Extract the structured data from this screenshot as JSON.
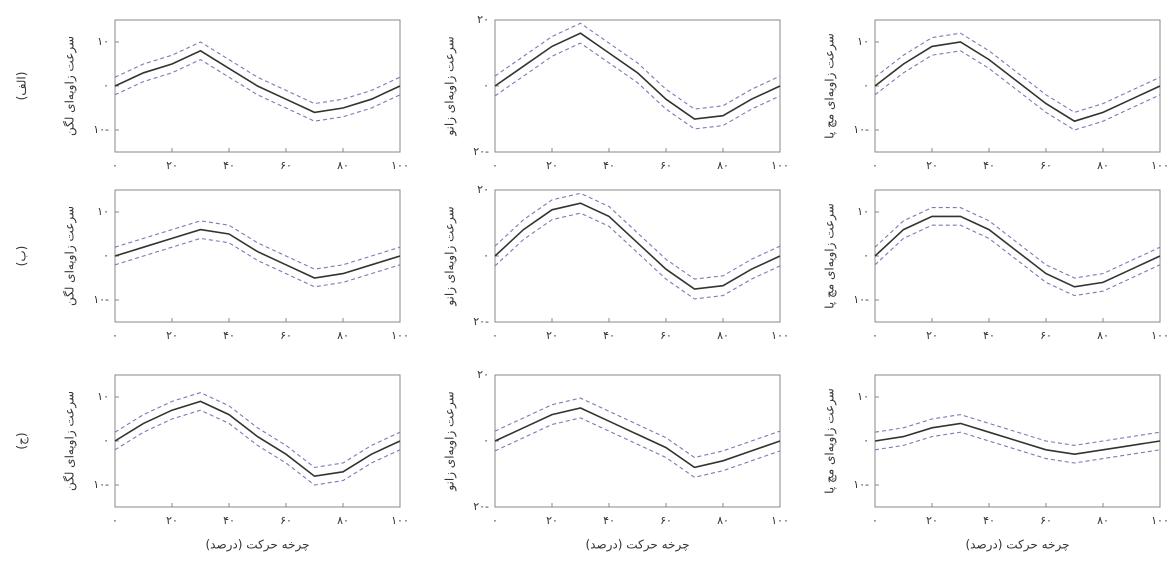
{
  "chart_data": [
    {
      "type": "line",
      "panel_label": "(الف)",
      "y_label": "سرعت زاویه‌ای لگن",
      "x": [
        0,
        10,
        20,
        30,
        40,
        50,
        60,
        70,
        80,
        90,
        100
      ],
      "xlim": [
        0,
        100
      ],
      "xticks": [
        {
          "value": 0,
          "label": "۰"
        },
        {
          "value": 20,
          "label": "۲۰"
        },
        {
          "value": 40,
          "label": "۴۰"
        },
        {
          "value": 60,
          "label": "۶۰"
        },
        {
          "value": 80,
          "label": "۸۰"
        },
        {
          "value": 100,
          "label": "۱۰۰"
        }
      ],
      "ylim": [
        -15,
        15
      ],
      "yticks": [
        {
          "value": -10,
          "label": "۱۰-"
        },
        {
          "value": 0,
          "label": "۰"
        },
        {
          "value": 10,
          "label": "۱۰"
        }
      ],
      "series": [
        {
          "color": "#333333",
          "style": "solid",
          "values": [
            0,
            3,
            5,
            8,
            4,
            0,
            -3,
            -6,
            -5,
            -3,
            0
          ]
        },
        {
          "color": "#7a7ab8",
          "style": "dashed",
          "values": [
            2,
            5,
            7,
            10,
            6,
            2,
            -1,
            -4,
            -3,
            -1,
            2
          ]
        },
        {
          "color": "#7a7ab8",
          "style": "dashed",
          "values": [
            -2,
            1,
            3,
            6,
            2,
            -2,
            -5,
            -8,
            -7,
            -5,
            -2
          ]
        }
      ]
    },
    {
      "type": "line",
      "y_label": "سرعت زاویه‌ای زانو",
      "x": [
        0,
        10,
        20,
        30,
        40,
        50,
        60,
        70,
        80,
        90,
        100
      ],
      "xlim": [
        0,
        100
      ],
      "xticks": [
        {
          "value": 0,
          "label": "۰"
        },
        {
          "value": 20,
          "label": "۲۰"
        },
        {
          "value": 40,
          "label": "۴۰"
        },
        {
          "value": 60,
          "label": "۶۰"
        },
        {
          "value": 80,
          "label": "۸۰"
        },
        {
          "value": 100,
          "label": "۱۰۰"
        }
      ],
      "ylim": [
        -20,
        20
      ],
      "yticks": [
        {
          "value": -20,
          "label": "۲۰-"
        },
        {
          "value": 0,
          "label": "۰"
        },
        {
          "value": 20,
          "label": "۲۰"
        }
      ],
      "series": [
        {
          "color": "#333333",
          "style": "solid",
          "values": [
            0,
            6,
            12,
            16,
            10,
            4,
            -4,
            -10,
            -9,
            -4,
            0
          ]
        },
        {
          "color": "#7a7ab8",
          "style": "dashed",
          "values": [
            3,
            9,
            15,
            19,
            13,
            7,
            -1,
            -7,
            -6,
            -1,
            3
          ]
        },
        {
          "color": "#7a7ab8",
          "style": "dashed",
          "values": [
            -3,
            3,
            9,
            13,
            7,
            1,
            -7,
            -13,
            -12,
            -7,
            -3
          ]
        }
      ]
    },
    {
      "type": "line",
      "y_label": "سرعت زاویه‌ای مچ پا",
      "x": [
        0,
        10,
        20,
        30,
        40,
        50,
        60,
        70,
        80,
        90,
        100
      ],
      "xlim": [
        0,
        100
      ],
      "xticks": [
        {
          "value": 0,
          "label": "۰"
        },
        {
          "value": 20,
          "label": "۲۰"
        },
        {
          "value": 40,
          "label": "۴۰"
        },
        {
          "value": 60,
          "label": "۶۰"
        },
        {
          "value": 80,
          "label": "۸۰"
        },
        {
          "value": 100,
          "label": "۱۰۰"
        }
      ],
      "ylim": [
        -15,
        15
      ],
      "yticks": [
        {
          "value": -10,
          "label": "۱۰-"
        },
        {
          "value": 0,
          "label": "۰"
        },
        {
          "value": 10,
          "label": "۱۰"
        }
      ],
      "series": [
        {
          "color": "#333333",
          "style": "solid",
          "values": [
            0,
            5,
            9,
            10,
            6,
            1,
            -4,
            -8,
            -6,
            -3,
            0
          ]
        },
        {
          "color": "#7a7ab8",
          "style": "dashed",
          "values": [
            2,
            7,
            11,
            12,
            8,
            3,
            -2,
            -6,
            -4,
            -1,
            2
          ]
        },
        {
          "color": "#7a7ab8",
          "style": "dashed",
          "values": [
            -2,
            3,
            7,
            8,
            4,
            -1,
            -6,
            -10,
            -8,
            -5,
            -2
          ]
        }
      ]
    },
    {
      "type": "line",
      "panel_label": "(ب)",
      "y_label": "سرعت زاویه‌ای لگن",
      "x": [
        0,
        10,
        20,
        30,
        40,
        50,
        60,
        70,
        80,
        90,
        100
      ],
      "xlim": [
        0,
        100
      ],
      "xticks": [
        {
          "value": 0,
          "label": "۰"
        },
        {
          "value": 20,
          "label": "۲۰"
        },
        {
          "value": 40,
          "label": "۴۰"
        },
        {
          "value": 60,
          "label": "۶۰"
        },
        {
          "value": 80,
          "label": "۸۰"
        },
        {
          "value": 100,
          "label": "۱۰۰"
        }
      ],
      "ylim": [
        -15,
        15
      ],
      "yticks": [
        {
          "value": -10,
          "label": "۱۰-"
        },
        {
          "value": 0,
          "label": "۰"
        },
        {
          "value": 10,
          "label": "۱۰"
        }
      ],
      "series": [
        {
          "color": "#333333",
          "style": "solid",
          "values": [
            0,
            2,
            4,
            6,
            5,
            1,
            -2,
            -5,
            -4,
            -2,
            0
          ]
        },
        {
          "color": "#7a7ab8",
          "style": "dashed",
          "values": [
            2,
            4,
            6,
            8,
            7,
            3,
            0,
            -3,
            -2,
            0,
            2
          ]
        },
        {
          "color": "#7a7ab8",
          "style": "dashed",
          "values": [
            -2,
            0,
            2,
            4,
            3,
            -1,
            -4,
            -7,
            -6,
            -4,
            -2
          ]
        }
      ]
    },
    {
      "type": "line",
      "y_label": "سرعت زاویه‌ای زانو",
      "x": [
        0,
        10,
        20,
        30,
        40,
        50,
        60,
        70,
        80,
        90,
        100
      ],
      "xlim": [
        0,
        100
      ],
      "xticks": [
        {
          "value": 0,
          "label": "۰"
        },
        {
          "value": 20,
          "label": "۲۰"
        },
        {
          "value": 40,
          "label": "۴۰"
        },
        {
          "value": 60,
          "label": "۶۰"
        },
        {
          "value": 80,
          "label": "۸۰"
        },
        {
          "value": 100,
          "label": "۱۰۰"
        }
      ],
      "ylim": [
        -20,
        20
      ],
      "yticks": [
        {
          "value": -20,
          "label": "۲۰-"
        },
        {
          "value": 0,
          "label": "۰"
        },
        {
          "value": 20,
          "label": "۲۰"
        }
      ],
      "series": [
        {
          "color": "#333333",
          "style": "solid",
          "values": [
            0,
            8,
            14,
            16,
            12,
            4,
            -4,
            -10,
            -9,
            -4,
            0
          ]
        },
        {
          "color": "#7a7ab8",
          "style": "dashed",
          "values": [
            3,
            11,
            17,
            19,
            15,
            7,
            -1,
            -7,
            -6,
            -1,
            3
          ]
        },
        {
          "color": "#7a7ab8",
          "style": "dashed",
          "values": [
            -3,
            5,
            11,
            13,
            9,
            1,
            -7,
            -13,
            -12,
            -7,
            -3
          ]
        }
      ]
    },
    {
      "type": "line",
      "y_label": "سرعت زاویه‌ای مچ پا",
      "x": [
        0,
        10,
        20,
        30,
        40,
        50,
        60,
        70,
        80,
        90,
        100
      ],
      "xlim": [
        0,
        100
      ],
      "xticks": [
        {
          "value": 0,
          "label": "۰"
        },
        {
          "value": 20,
          "label": "۲۰"
        },
        {
          "value": 40,
          "label": "۴۰"
        },
        {
          "value": 60,
          "label": "۶۰"
        },
        {
          "value": 80,
          "label": "۸۰"
        },
        {
          "value": 100,
          "label": "۱۰۰"
        }
      ],
      "ylim": [
        -15,
        15
      ],
      "yticks": [
        {
          "value": -10,
          "label": "۱۰-"
        },
        {
          "value": 0,
          "label": "۰"
        },
        {
          "value": 10,
          "label": "۱۰"
        }
      ],
      "series": [
        {
          "color": "#333333",
          "style": "solid",
          "values": [
            0,
            6,
            9,
            9,
            6,
            1,
            -4,
            -7,
            -6,
            -3,
            0
          ]
        },
        {
          "color": "#7a7ab8",
          "style": "dashed",
          "values": [
            2,
            8,
            11,
            11,
            8,
            3,
            -2,
            -5,
            -4,
            -1,
            2
          ]
        },
        {
          "color": "#7a7ab8",
          "style": "dashed",
          "values": [
            -2,
            4,
            7,
            7,
            4,
            -1,
            -6,
            -9,
            -8,
            -5,
            -2
          ]
        }
      ]
    },
    {
      "type": "line",
      "panel_label": "(ج)",
      "y_label": "سرعت زاویه‌ای لگن",
      "x_label": "چرخه حرکت (درصد)",
      "x": [
        0,
        10,
        20,
        30,
        40,
        50,
        60,
        70,
        80,
        90,
        100
      ],
      "xlim": [
        0,
        100
      ],
      "xticks": [
        {
          "value": 0,
          "label": "۰"
        },
        {
          "value": 20,
          "label": "۲۰"
        },
        {
          "value": 40,
          "label": "۴۰"
        },
        {
          "value": 60,
          "label": "۶۰"
        },
        {
          "value": 80,
          "label": "۸۰"
        },
        {
          "value": 100,
          "label": "۱۰۰"
        }
      ],
      "ylim": [
        -15,
        15
      ],
      "yticks": [
        {
          "value": -10,
          "label": "۱۰-"
        },
        {
          "value": 0,
          "label": "۰"
        },
        {
          "value": 10,
          "label": "۱۰"
        }
      ],
      "series": [
        {
          "color": "#333333",
          "style": "solid",
          "values": [
            0,
            4,
            7,
            9,
            6,
            1,
            -3,
            -8,
            -7,
            -3,
            0
          ]
        },
        {
          "color": "#7a7ab8",
          "style": "dashed",
          "values": [
            2,
            6,
            9,
            11,
            8,
            3,
            -1,
            -6,
            -5,
            -1,
            2
          ]
        },
        {
          "color": "#7a7ab8",
          "style": "dashed",
          "values": [
            -2,
            2,
            5,
            7,
            4,
            -1,
            -5,
            -10,
            -9,
            -5,
            -2
          ]
        }
      ]
    },
    {
      "type": "line",
      "y_label": "سرعت زاویه‌ای زانو",
      "x_label": "چرخه حرکت (درصد)",
      "x": [
        0,
        10,
        20,
        30,
        40,
        50,
        60,
        70,
        80,
        90,
        100
      ],
      "xlim": [
        0,
        100
      ],
      "xticks": [
        {
          "value": 0,
          "label": "۰"
        },
        {
          "value": 20,
          "label": "۲۰"
        },
        {
          "value": 40,
          "label": "۴۰"
        },
        {
          "value": 60,
          "label": "۶۰"
        },
        {
          "value": 80,
          "label": "۸۰"
        },
        {
          "value": 100,
          "label": "۱۰۰"
        }
      ],
      "ylim": [
        -20,
        20
      ],
      "yticks": [
        {
          "value": -20,
          "label": "۲۰-"
        },
        {
          "value": 0,
          "label": "۰"
        },
        {
          "value": 20,
          "label": "۲۰"
        }
      ],
      "series": [
        {
          "color": "#333333",
          "style": "solid",
          "values": [
            0,
            4,
            8,
            10,
            6,
            2,
            -2,
            -8,
            -6,
            -3,
            0
          ]
        },
        {
          "color": "#7a7ab8",
          "style": "dashed",
          "values": [
            3,
            7,
            11,
            13,
            9,
            5,
            1,
            -5,
            -3,
            0,
            3
          ]
        },
        {
          "color": "#7a7ab8",
          "style": "dashed",
          "values": [
            -3,
            1,
            5,
            7,
            3,
            -1,
            -5,
            -11,
            -9,
            -6,
            -3
          ]
        }
      ]
    },
    {
      "type": "line",
      "y_label": "سرعت زاویه‌ای مچ پا",
      "x_label": "چرخه حرکت (درصد)",
      "x": [
        0,
        10,
        20,
        30,
        40,
        50,
        60,
        70,
        80,
        90,
        100
      ],
      "xlim": [
        0,
        100
      ],
      "xticks": [
        {
          "value": 0,
          "label": "۰"
        },
        {
          "value": 20,
          "label": "۲۰"
        },
        {
          "value": 40,
          "label": "۴۰"
        },
        {
          "value": 60,
          "label": "۶۰"
        },
        {
          "value": 80,
          "label": "۸۰"
        },
        {
          "value": 100,
          "label": "۱۰۰"
        }
      ],
      "ylim": [
        -15,
        15
      ],
      "yticks": [
        {
          "value": -10,
          "label": "۱۰-"
        },
        {
          "value": 0,
          "label": "۰"
        },
        {
          "value": 10,
          "label": "۱۰"
        }
      ],
      "series": [
        {
          "color": "#333333",
          "style": "solid",
          "values": [
            0,
            1,
            3,
            4,
            2,
            0,
            -2,
            -3,
            -2,
            -1,
            0
          ]
        },
        {
          "color": "#7a7ab8",
          "style": "dashed",
          "values": [
            2,
            3,
            5,
            6,
            4,
            2,
            0,
            -1,
            0,
            1,
            2
          ]
        },
        {
          "color": "#7a7ab8",
          "style": "dashed",
          "values": [
            -2,
            -1,
            1,
            2,
            0,
            -2,
            -4,
            -5,
            -4,
            -3,
            -2
          ]
        }
      ]
    }
  ]
}
